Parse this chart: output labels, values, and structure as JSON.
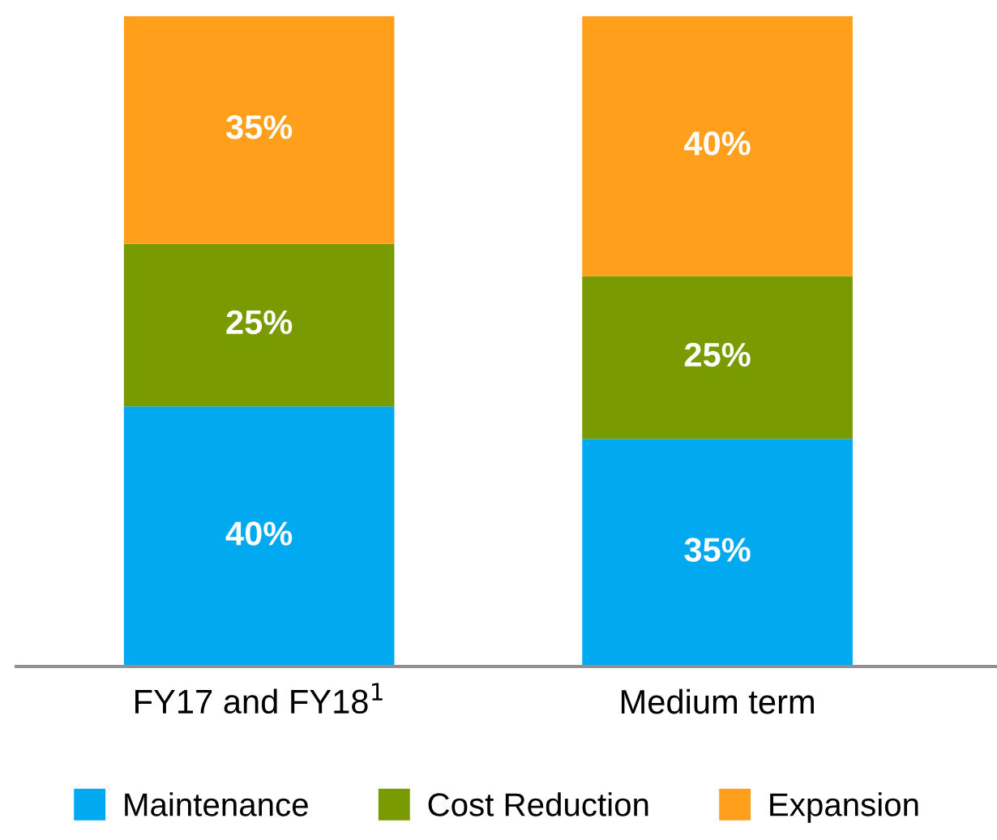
{
  "chart_data": {
    "type": "bar",
    "stacked": true,
    "categories": [
      "FY17 and FY18$^{1}$",
      "Medium term"
    ],
    "ylim": [
      0,
      100
    ],
    "tick_labels": "x",
    "grid": false,
    "legend": "bottom",
    "series": [
      {
        "name": "Maintenance",
        "color": "#00a9f0",
        "values": [
          40,
          35
        ],
        "value_labels": [
          "40%",
          "35%"
        ]
      },
      {
        "name": "Cost Reduction",
        "color": "#7a9a01",
        "values": [
          25,
          25
        ],
        "value_labels": [
          "25%",
          "25%"
        ]
      },
      {
        "name": "Expansion",
        "color": "#ff9f1c",
        "values": [
          35,
          40
        ],
        "value_labels": [
          "35%",
          "40%"
        ]
      }
    ]
  }
}
